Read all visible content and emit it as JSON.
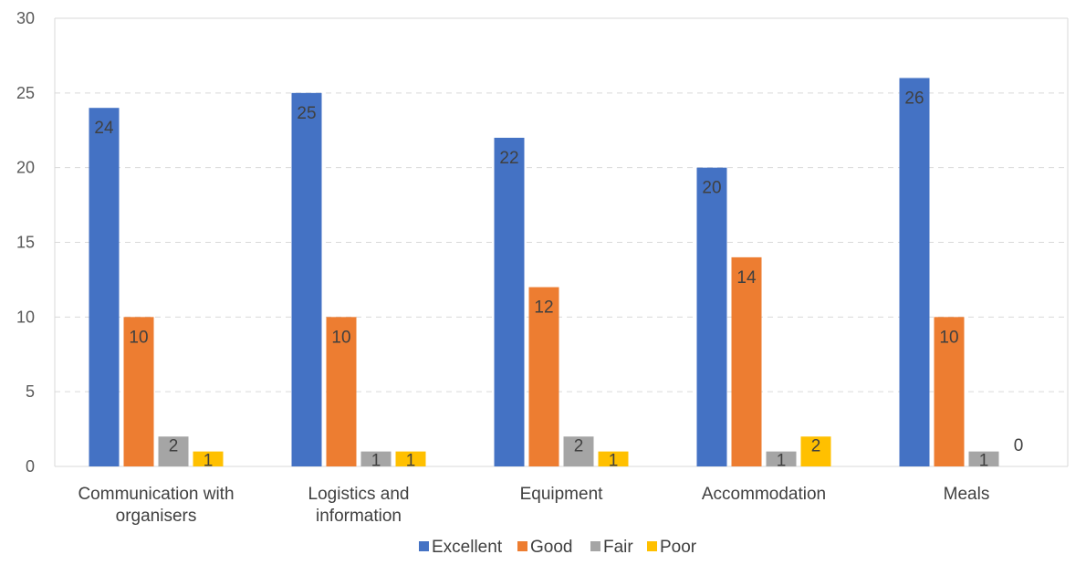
{
  "chart_data": {
    "type": "bar",
    "categories": [
      [
        "Communication with",
        "organisers"
      ],
      [
        "Logistics and",
        "information"
      ],
      [
        "Equipment"
      ],
      [
        "Accommodation"
      ],
      [
        "Meals"
      ]
    ],
    "series": [
      {
        "name": "Excellent",
        "color": "#4472C4",
        "values": [
          24,
          25,
          22,
          20,
          26
        ]
      },
      {
        "name": "Good",
        "color": "#ED7D31",
        "values": [
          10,
          10,
          12,
          14,
          10
        ]
      },
      {
        "name": "Fair",
        "color": "#A5A5A5",
        "values": [
          2,
          1,
          2,
          1,
          1
        ]
      },
      {
        "name": "Poor",
        "color": "#FFC000",
        "values": [
          1,
          1,
          1,
          2,
          0
        ]
      }
    ],
    "ylim": [
      0,
      30
    ],
    "yticks": [
      0,
      5,
      10,
      15,
      20,
      25,
      30
    ],
    "grid": true,
    "legend_position": "bottom",
    "title": "",
    "xlabel": "",
    "ylabel": ""
  }
}
